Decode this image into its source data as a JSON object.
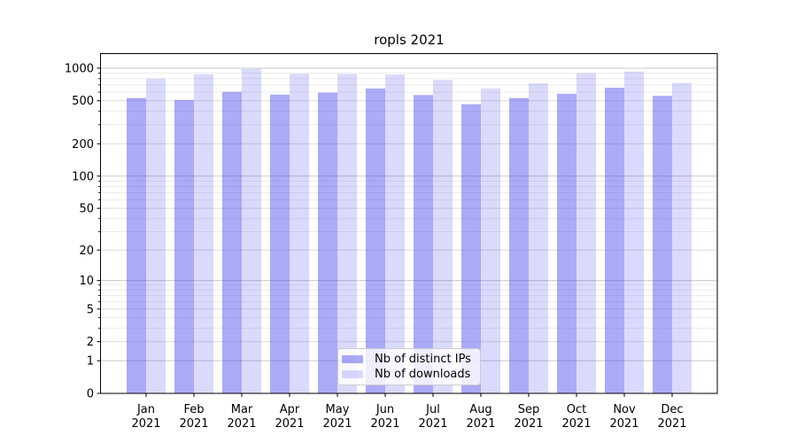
{
  "figure": {
    "background": "#ffffff"
  },
  "chart_data": {
    "type": "bar",
    "title": "ropls 2021",
    "x_months": [
      "Jan",
      "Feb",
      "Mar",
      "Apr",
      "May",
      "Jun",
      "Jul",
      "Aug",
      "Sep",
      "Oct",
      "Nov",
      "Dec"
    ],
    "x_year": "2021",
    "series": [
      {
        "name": "Nb of distinct IPs",
        "color": "rgba(68,68,238,0.45)",
        "values": [
          530,
          510,
          605,
          570,
          595,
          650,
          565,
          465,
          530,
          580,
          660,
          555
        ]
      },
      {
        "name": "Nb of downloads",
        "color": "rgba(68,68,238,0.20)",
        "values": [
          800,
          880,
          985,
          890,
          885,
          875,
          780,
          650,
          725,
          900,
          930,
          730
        ]
      }
    ],
    "yscale": "log1p",
    "yticks": [
      0,
      1,
      2,
      5,
      10,
      20,
      50,
      100,
      200,
      500,
      1000
    ],
    "ylim": [
      0,
      1360
    ],
    "grid": true,
    "legend_position": "lower center",
    "colors": {
      "major_gridline": "#c8c8c8",
      "labeled_gridline": "#dcdcdc",
      "minor_gridline": "#ececec",
      "spine": "#000000"
    }
  }
}
